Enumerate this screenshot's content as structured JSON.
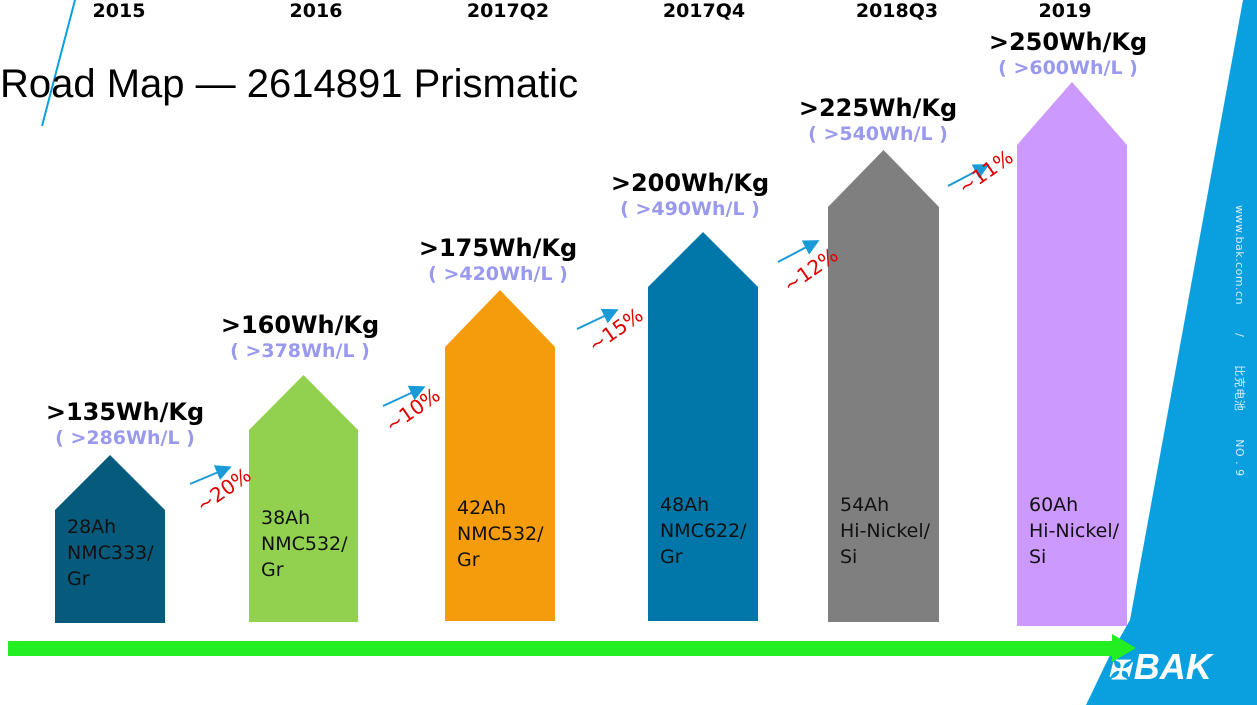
{
  "title": "Road Map — 2614891 Prismatic",
  "colors": {
    "panel": "#0aa0e0",
    "timeline": "#22ee22",
    "increase": "#e00000",
    "whl": "#9999ee"
  },
  "milestones": [
    {
      "year": "2015",
      "whkg": ">135Wh/Kg",
      "whl": "( >286Wh/L )",
      "cell": "28Ah\nNMC333/\nGr",
      "color": "#065a7c"
    },
    {
      "year": "2016",
      "whkg": ">160Wh/Kg",
      "whl": "( >378Wh/L )",
      "cell": "38Ah\nNMC532/\nGr",
      "color": "#92d050"
    },
    {
      "year": "2017Q2",
      "whkg": ">175Wh/Kg",
      "whl": "( >420Wh/L )",
      "cell": "42Ah\nNMC532/\nGr",
      "color": "#f59c0c"
    },
    {
      "year": "2017Q4",
      "whkg": ">200Wh/Kg",
      "whl": "( >490Wh/L )",
      "cell": "48Ah\nNMC622/\nGr",
      "color": "#0077a8"
    },
    {
      "year": "2018Q3",
      "whkg": ">225Wh/Kg",
      "whl": "( >540Wh/L )",
      "cell": "54Ah\nHi-Nickel/\nSi",
      "color": "#7f7f7f"
    },
    {
      "year": "2019",
      "whkg": ">250Wh/Kg",
      "whl": "( >600Wh/L )",
      "cell": "60Ah\nHi-Nickel/\nSi",
      "color": "#cc99ff"
    }
  ],
  "increases": [
    "~20%",
    "~10%",
    "~15%",
    "~12%",
    "~11%"
  ],
  "side_text": {
    "url": "www.bak.com.cn",
    "sep": "/",
    "company": "比克电池",
    "page": "NO . 9"
  },
  "logo": {
    "text": "BAK"
  }
}
